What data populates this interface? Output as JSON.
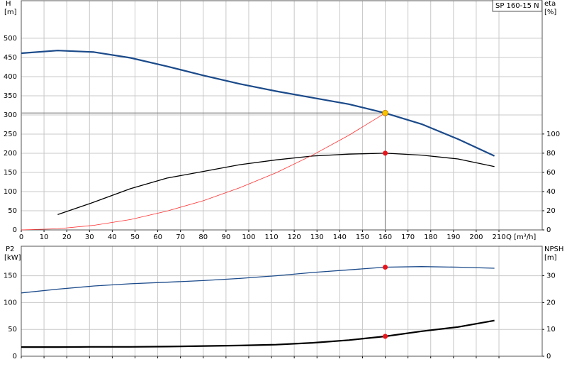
{
  "chart_data": [
    {
      "type": "line",
      "title": "SP 160-15 N",
      "ylabel": "H",
      "yunit": "[m]",
      "y2label": "eta",
      "y2unit": "[%]",
      "xlabel": "Q [m³/h]",
      "xlim": [
        0,
        229
      ],
      "xticks": [
        0,
        10,
        20,
        30,
        40,
        50,
        60,
        70,
        80,
        90,
        100,
        110,
        120,
        130,
        140,
        150,
        160,
        170,
        180,
        190,
        200,
        210
      ],
      "xtick_labels": true,
      "ylim": [
        0,
        598
      ],
      "yticks": [
        0,
        50,
        100,
        150,
        200,
        250,
        300,
        350,
        400,
        450,
        500
      ],
      "y2lim": [
        0,
        239
      ],
      "y2ticks": [
        0,
        20,
        40,
        60,
        80,
        100
      ],
      "grid": true,
      "grid_color": "#c8c8c8",
      "marker_color": "#e8141a",
      "operating_color": "#f5c400",
      "operating_point": {
        "x": 160,
        "y": 305
      },
      "series": [
        {
          "color": "#1b4a8a",
          "width": 2.2,
          "x": [
            0,
            16,
            32,
            48,
            64,
            80,
            96,
            112,
            128,
            144,
            160,
            176,
            192,
            208
          ],
          "values": [
            461,
            468,
            464,
            449,
            427,
            403,
            381,
            362,
            345,
            328,
            305,
            276,
            237,
            193
          ]
        },
        {
          "color": "#000000",
          "width": 1.3,
          "axis": "y2",
          "x": [
            16,
            32,
            48,
            64,
            80,
            96,
            112,
            128,
            144,
            160,
            176,
            192,
            208
          ],
          "values": [
            16,
            29,
            43,
            54,
            61,
            68,
            73,
            77,
            79,
            80,
            78,
            74,
            66
          ]
        },
        {
          "color": "#ff3030",
          "width": 0.8,
          "x": [
            0,
            16,
            32,
            48,
            64,
            80,
            96,
            112,
            128,
            144,
            160
          ],
          "values": [
            0,
            3,
            12,
            27,
            49,
            76,
            110,
            149,
            195,
            247,
            305
          ]
        }
      ]
    },
    {
      "type": "line",
      "ylabel": "P2",
      "yunit": "[kW]",
      "y2label": "NPSH",
      "y2unit": "[m]",
      "xlim": [
        0,
        229
      ],
      "xticks": [
        0,
        10,
        20,
        30,
        40,
        50,
        60,
        70,
        80,
        90,
        100,
        110,
        120,
        130,
        140,
        150,
        160,
        170,
        180,
        190,
        200,
        210
      ],
      "xtick_labels": false,
      "ylim": [
        0,
        205
      ],
      "yticks": [
        0,
        50,
        100,
        150
      ],
      "y2lim": [
        0,
        41
      ],
      "y2ticks": [
        0,
        10,
        20,
        30
      ],
      "grid": true,
      "grid_color": "#c8c8c8",
      "marker_color": "#e8141a",
      "operating_point": {
        "x": 160
      },
      "series": [
        {
          "color": "#1b4a8a",
          "width": 1.3,
          "x": [
            0,
            16,
            32,
            48,
            64,
            80,
            96,
            112,
            128,
            144,
            160,
            176,
            192,
            208
          ],
          "values": [
            118,
            125,
            131,
            135,
            138,
            141,
            145,
            150,
            156,
            161,
            166,
            167,
            166,
            164
          ]
        },
        {
          "color": "#000000",
          "width": 2.2,
          "axis": "y2",
          "x": [
            0,
            16,
            32,
            48,
            64,
            80,
            96,
            112,
            128,
            144,
            160,
            176,
            192,
            208
          ],
          "values": [
            3.4,
            3.4,
            3.5,
            3.5,
            3.6,
            3.8,
            4.0,
            4.3,
            5.0,
            6.0,
            7.4,
            9.3,
            10.9,
            13.3
          ]
        }
      ]
    }
  ]
}
